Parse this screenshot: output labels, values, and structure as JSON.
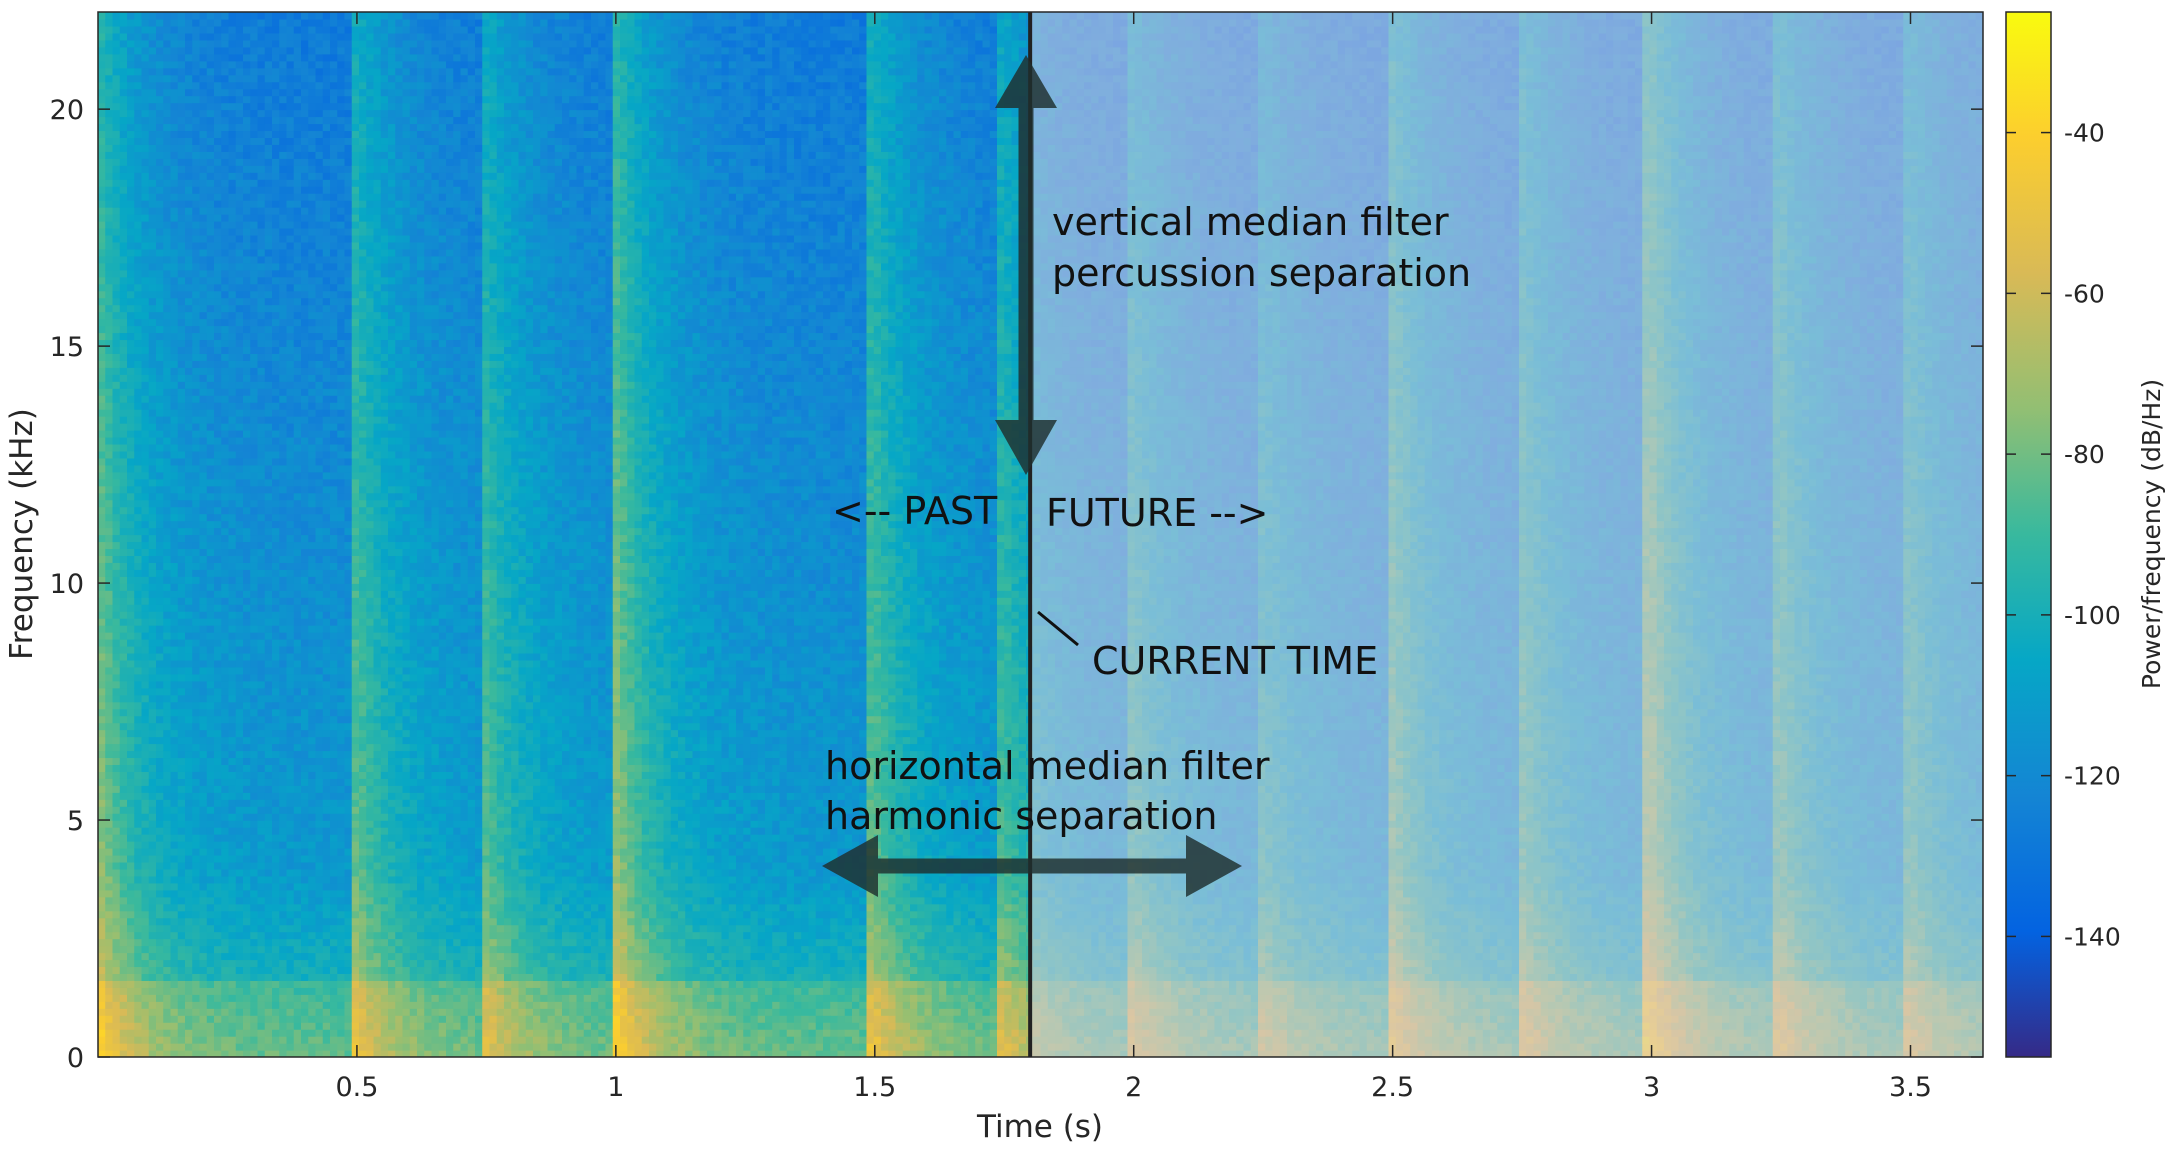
{
  "chart_data": {
    "type": "heatmap",
    "title": "",
    "xlabel": "Time (s)",
    "ylabel": "Frequency (kHz)",
    "xlim": [
      0,
      3.64
    ],
    "ylim": [
      0,
      22.05
    ],
    "x_ticks": [
      "0.5",
      "1",
      "1.5",
      "2",
      "2.5",
      "3",
      "3.5"
    ],
    "x_tick_values": [
      0.5,
      1,
      1.5,
      2,
      2.5,
      3,
      3.5
    ],
    "y_ticks": [
      "0",
      "5",
      "10",
      "15",
      "20"
    ],
    "y_tick_values": [
      0,
      5,
      10,
      15,
      20
    ],
    "colorbar": {
      "label": "Power/frequency (dB/Hz)",
      "range": [
        -155,
        -25
      ],
      "ticks": [
        "-40",
        "-60",
        "-80",
        "-100",
        "-120",
        "-140"
      ],
      "tick_values": [
        -40,
        -60,
        -80,
        -100,
        -120,
        -140
      ],
      "colormap": "parula"
    },
    "onsets_s": [
      0.0,
      0.5,
      0.75,
      1.0,
      1.5,
      1.75,
      2.0,
      2.25,
      2.5,
      2.75,
      3.0,
      3.25,
      3.5
    ],
    "onset_strength": [
      1.0,
      0.75,
      0.7,
      1.0,
      0.75,
      0.65,
      0.6,
      0.5,
      0.8,
      0.7,
      1.0,
      0.7,
      0.6
    ],
    "current_time_s": 1.8,
    "annotations": {
      "vertical_filter_line1": "vertical median filter",
      "vertical_filter_line2": "percussion separation",
      "past": "<-- PAST",
      "future": "FUTURE -->",
      "current_time": "CURRENT TIME",
      "horizontal_filter_line1": "horizontal median filter",
      "horizontal_filter_line2": "harmonic separation"
    },
    "arrows": {
      "vertical": {
        "time_s": 1.8,
        "from_khz": 12.3,
        "to_khz": 21.3
      },
      "horizontal": {
        "freq_khz": 4.0,
        "from_s": 1.4,
        "to_s": 2.22
      }
    },
    "future_overlay": true
  }
}
